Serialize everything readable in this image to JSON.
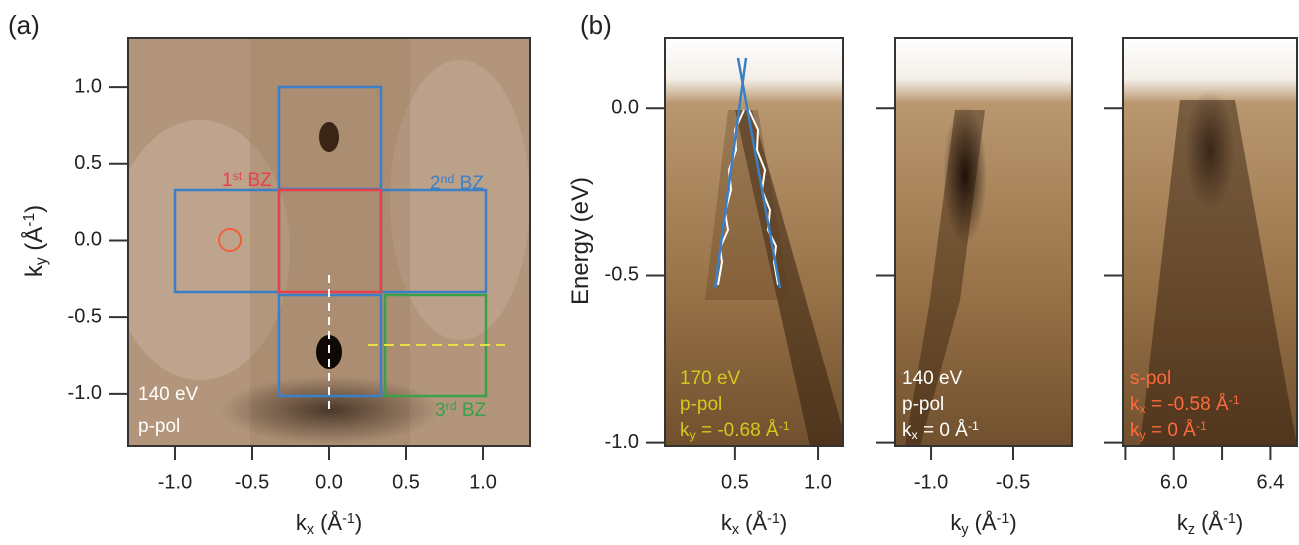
{
  "chart_data": [
    {
      "type": "heatmap",
      "panel_label": "(a)",
      "xlabel": [
        {
          "text": "k"
        },
        {
          "text": "x",
          "style": "sub"
        },
        {
          "text": " (Å"
        },
        {
          "text": "-1",
          "style": "sup"
        },
        {
          "text": ")"
        }
      ],
      "ylabel": [
        {
          "text": "k"
        },
        {
          "text": "y",
          "style": "sub"
        },
        {
          "text": " (Å"
        },
        {
          "text": "-1",
          "style": "sup"
        },
        {
          "text": ")"
        }
      ],
      "xlim": [
        -1.305,
        1.305
      ],
      "ylim": [
        -1.34,
        1.32
      ],
      "xticks": [
        {
          "value": -1,
          "label": "-1.0"
        },
        -0.5,
        {
          "value": 0,
          "label": "0.0"
        },
        0.5,
        {
          "value": 1,
          "label": "1.0"
        }
      ],
      "yticks": [
        {
          "value": 1,
          "label": "1.0"
        },
        0.5,
        {
          "value": 0,
          "label": "0.0"
        },
        -0.5,
        {
          "value": -1,
          "label": "-1.0"
        }
      ],
      "annotations": [
        {
          "segments": [
            {
              "text": "140 eV"
            }
          ],
          "color": "#ffffff"
        },
        {
          "segments": [
            {
              "text": "p-pol"
            }
          ],
          "color": "#ffffff"
        },
        {
          "segments": [
            {
              "text": "1"
            },
            {
              "text": "st",
              "style": "sup"
            },
            {
              "text": " BZ"
            }
          ],
          "color": "#e8414a"
        },
        {
          "segments": [
            {
              "text": "2"
            },
            {
              "text": "nd",
              "style": "sup"
            },
            {
              "text": " BZ"
            }
          ],
          "color": "#3b7fc4"
        },
        {
          "segments": [
            {
              "text": "3"
            },
            {
              "text": "rd",
              "style": "sup"
            },
            {
              "text": " BZ"
            }
          ],
          "color": "#3aa04a"
        }
      ]
    },
    {
      "type": "heatmap",
      "panel_label": "(b)",
      "xlabel": [
        {
          "text": "k"
        },
        {
          "text": "x",
          "style": "sub"
        },
        {
          "text": " (Å"
        },
        {
          "text": "-1",
          "style": "sup"
        },
        {
          "text": ")"
        }
      ],
      "ylabel": [
        {
          "text": "Energy (eV)"
        }
      ],
      "xlim": [
        0.08,
        1.15
      ],
      "ylim": [
        -1.01,
        0.21
      ],
      "xticks": [
        0.5,
        {
          "value": 1,
          "label": "1.0"
        }
      ],
      "yticks": [
        {
          "value": 0,
          "label": "0.0"
        },
        -0.5,
        {
          "value": -1,
          "label": "-1.0"
        }
      ],
      "annotations": [
        {
          "segments": [
            {
              "text": "170 eV"
            }
          ],
          "color": "#d8c81c"
        },
        {
          "segments": [
            {
              "text": "p-pol"
            }
          ],
          "color": "#d8c81c"
        },
        {
          "segments": [
            {
              "text": "k"
            },
            {
              "text": "y",
              "style": "sub"
            },
            {
              "text": " = -0.68 Å"
            },
            {
              "text": "-1",
              "style": "sup"
            }
          ],
          "color": "#d8c81c"
        }
      ]
    },
    {
      "type": "heatmap",
      "xlabel": [
        {
          "text": "k"
        },
        {
          "text": "y",
          "style": "sub"
        },
        {
          "text": " (Å"
        },
        {
          "text": "-1",
          "style": "sup"
        },
        {
          "text": ")"
        }
      ],
      "xlim": [
        -1.22,
        -0.14
      ],
      "ylim": [
        -1.01,
        0.21
      ],
      "xticks": [
        {
          "value": -1,
          "label": "-1.0"
        },
        -0.5
      ],
      "yticks": [
        0,
        -0.5,
        -1
      ],
      "ytick_labels": false,
      "annotations": [
        {
          "segments": [
            {
              "text": "140 eV"
            }
          ],
          "color": "#ffffff"
        },
        {
          "segments": [
            {
              "text": "p-pol"
            }
          ],
          "color": "#ffffff"
        },
        {
          "segments": [
            {
              "text": "k"
            },
            {
              "text": "x",
              "style": "sub"
            },
            {
              "text": " = 0 Å"
            },
            {
              "text": "-1",
              "style": "sup"
            }
          ],
          "color": "#ffffff"
        }
      ]
    },
    {
      "type": "heatmap",
      "xlabel": [
        {
          "text": "k"
        },
        {
          "text": "z",
          "style": "sub"
        },
        {
          "text": " (Å"
        },
        {
          "text": "-1",
          "style": "sup"
        },
        {
          "text": ")"
        }
      ],
      "xlim": [
        5.79,
        6.51
      ],
      "ylim": [
        -1.01,
        0.21
      ],
      "xticks": [
        {
          "value": 6,
          "label": "6.0"
        },
        6.4
      ],
      "xminorticks": [
        5.8,
        6.2
      ],
      "yticks": [
        0,
        -0.5,
        -1
      ],
      "ytick_labels": false,
      "annotations": [
        {
          "segments": [
            {
              "text": "s-pol"
            }
          ],
          "color": "#ff6a3d"
        },
        {
          "segments": [
            {
              "text": "k"
            },
            {
              "text": "x",
              "style": "sub"
            },
            {
              "text": " = -0.58 Å"
            },
            {
              "text": "-1",
              "style": "sup"
            }
          ],
          "color": "#ff6a3d"
        },
        {
          "segments": [
            {
              "text": "k"
            },
            {
              "text": "y",
              "style": "sub"
            },
            {
              "text": " = 0 Å"
            },
            {
              "text": "-1",
              "style": "sup"
            }
          ],
          "color": "#ff6a3d"
        }
      ]
    }
  ]
}
